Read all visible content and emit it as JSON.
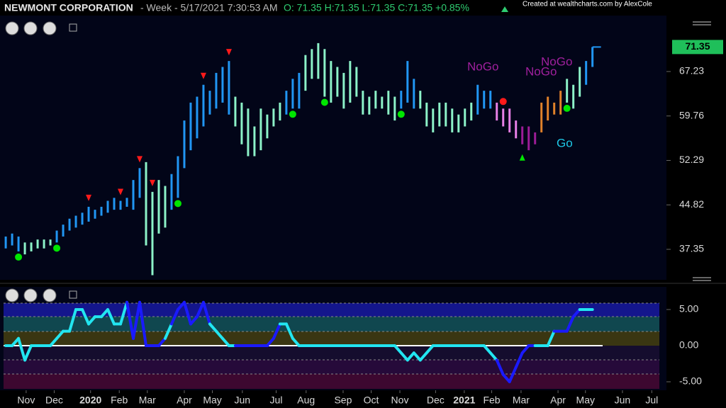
{
  "header": {
    "symbol": "NEWMONT CORPORATION",
    "info": "- Week - 5/17/2021 7:30:53 AM",
    "ohlc": "O: 71.35 H:71.35 L:71.35 C:71.35 +0.85%",
    "credit": "Created at wealthcharts.com by AlexCole"
  },
  "chart_data": {
    "type": "ohlc",
    "x": [
      0,
      1,
      2,
      3,
      4,
      5,
      6,
      7,
      8,
      9,
      10,
      11,
      12,
      13,
      14,
      15,
      16,
      17,
      18,
      19,
      20,
      21,
      22,
      23,
      24,
      25,
      26,
      27,
      28,
      29,
      30,
      31,
      32,
      33,
      34,
      35,
      36,
      37,
      38,
      39,
      40,
      41,
      42,
      43,
      44,
      45,
      46,
      47,
      48,
      49,
      50,
      51,
      52,
      53,
      54,
      55,
      56,
      57,
      58,
      59,
      60,
      61,
      62,
      63,
      64,
      65,
      66,
      67,
      68,
      69,
      70,
      71,
      72,
      73,
      74,
      75,
      76,
      77,
      78,
      79,
      80,
      81,
      82,
      83,
      84,
      85,
      86,
      87,
      88,
      89,
      90,
      91,
      92
    ],
    "high": [
      39.5,
      40,
      39.5,
      38.5,
      38.5,
      39,
      39,
      39,
      40.5,
      41.5,
      42.5,
      43,
      43.5,
      44.5,
      44,
      44.5,
      45.5,
      46,
      45.5,
      46,
      49,
      51,
      52,
      47,
      49,
      48,
      50,
      53,
      59,
      62,
      63,
      65,
      64,
      67,
      68,
      69,
      63,
      62,
      61,
      58,
      61,
      60,
      61,
      62,
      64,
      66,
      67,
      70,
      71,
      72,
      71,
      69,
      68,
      67,
      69,
      68,
      64,
      63,
      64,
      63,
      64,
      63,
      64,
      69,
      66,
      64,
      62,
      61,
      62,
      62,
      61,
      60,
      61,
      62,
      65,
      64,
      64,
      62,
      61,
      61,
      59,
      58,
      58,
      57,
      62,
      63,
      62,
      64,
      66,
      65,
      68,
      69,
      71.35
    ],
    "low": [
      37.5,
      38,
      37,
      36.5,
      37,
      37.5,
      37.5,
      38,
      38.5,
      39.5,
      40.5,
      41,
      41.5,
      42,
      42.5,
      43,
      43.5,
      44,
      44,
      44.5,
      44,
      46,
      38,
      33,
      40,
      41,
      44,
      46,
      51,
      54,
      56,
      58,
      60,
      61,
      62,
      60,
      58,
      55,
      53,
      53,
      54,
      56,
      58,
      59,
      60,
      61,
      61,
      64,
      66,
      66,
      63,
      62,
      63,
      61,
      62,
      63,
      60,
      60,
      61,
      61,
      60,
      59,
      61,
      62,
      61,
      61,
      58,
      57,
      58,
      58,
      57,
      57,
      58,
      59,
      60,
      61,
      61,
      59,
      58,
      57,
      56,
      55,
      54,
      55,
      57,
      59,
      60,
      60,
      62,
      61,
      63,
      65,
      68
    ],
    "colors": [
      "#2196f3",
      "#2196f3",
      "#2196f3",
      "#8cf2c8",
      "#8cf2c8",
      "#8cf2c8",
      "#8cf2c8",
      "#8cf2c8",
      "#2196f3",
      "#2196f3",
      "#2196f3",
      "#2196f3",
      "#2196f3",
      "#2196f3",
      "#2196f3",
      "#2196f3",
      "#2196f3",
      "#2196f3",
      "#2196f3",
      "#2196f3",
      "#2196f3",
      "#2196f3",
      "#8cf2c8",
      "#8cf2c8",
      "#8cf2c8",
      "#8cf2c8",
      "#2196f3",
      "#2196f3",
      "#2196f3",
      "#2196f3",
      "#2196f3",
      "#2196f3",
      "#2196f3",
      "#2196f3",
      "#2196f3",
      "#2196f3",
      "#8cf2c8",
      "#8cf2c8",
      "#8cf2c8",
      "#8cf2c8",
      "#8cf2c8",
      "#8cf2c8",
      "#8cf2c8",
      "#8cf2c8",
      "#2196f3",
      "#2196f3",
      "#2196f3",
      "#8cf2c8",
      "#8cf2c8",
      "#8cf2c8",
      "#8cf2c8",
      "#8cf2c8",
      "#8cf2c8",
      "#8cf2c8",
      "#8cf2c8",
      "#8cf2c8",
      "#8cf2c8",
      "#8cf2c8",
      "#8cf2c8",
      "#8cf2c8",
      "#8cf2c8",
      "#8cf2c8",
      "#2196f3",
      "#2196f3",
      "#2196f3",
      "#8cf2c8",
      "#8cf2c8",
      "#8cf2c8",
      "#8cf2c8",
      "#8cf2c8",
      "#8cf2c8",
      "#8cf2c8",
      "#8cf2c8",
      "#8cf2c8",
      "#2196f3",
      "#2196f3",
      "#2196f3",
      "#e77fe6",
      "#e77fe6",
      "#e77fe6",
      "#e77fe6",
      "#9c1c96",
      "#9c1c96",
      "#9c1c96",
      "#e0812a",
      "#e0812a",
      "#e0812a",
      "#e0812a",
      "#8cf2c8",
      "#8cf2c8",
      "#8cf2c8",
      "#2196f3",
      "#2196f3"
    ],
    "xlim": [
      -0.9,
      103.6
    ],
    "xticks": [
      {
        "value": 3.2,
        "label": "Nov"
      },
      {
        "value": 7.6,
        "label": "Dec"
      },
      {
        "value": 13.3,
        "label": "2020"
      },
      {
        "value": 17.8,
        "label": "Feb"
      },
      {
        "value": 22.2,
        "label": "Mar"
      },
      {
        "value": 28,
        "label": "Apr"
      },
      {
        "value": 32.4,
        "label": "May"
      },
      {
        "value": 37.1,
        "label": "Jun"
      },
      {
        "value": 42.4,
        "label": "Jul"
      },
      {
        "value": 47.1,
        "label": "Aug"
      },
      {
        "value": 52.9,
        "label": "Sep"
      },
      {
        "value": 57.3,
        "label": "Oct"
      },
      {
        "value": 61.8,
        "label": "Nov"
      },
      {
        "value": 67.4,
        "label": "Dec"
      },
      {
        "value": 71.9,
        "label": "2021"
      },
      {
        "value": 76.2,
        "label": "Feb"
      },
      {
        "value": 80.8,
        "label": "Mar"
      },
      {
        "value": 86.6,
        "label": "Apr"
      },
      {
        "value": 90.9,
        "label": "May"
      },
      {
        "value": 96.7,
        "label": "Jun"
      },
      {
        "value": 101.3,
        "label": "Jul"
      }
    ],
    "ylim": [
      32.23,
      79.25
    ],
    "yticks": [
      37.35,
      44.82,
      52.29,
      59.76,
      67.23
    ],
    "sell_signals": [
      13,
      18,
      21,
      23,
      31,
      35
    ],
    "go_signals": [
      2,
      8,
      27,
      45,
      50,
      62,
      88
    ],
    "nogo_signals": [
      78
    ],
    "buy_signals": [
      81
    ],
    "signal_colors": {
      "sell": "#ff1a1a",
      "go": "#00e600",
      "nogo": "#ff1a1a",
      "buy": "#00e600"
    },
    "annotations": [
      "NoGo",
      "NoGo",
      "NoGo",
      "Go"
    ],
    "oscillator": {
      "type": "line",
      "values": [
        0,
        0,
        1,
        -2,
        0,
        0,
        0,
        0,
        1,
        2,
        2,
        5,
        5,
        3,
        4,
        4,
        5,
        3,
        3,
        6,
        1,
        6,
        0,
        0,
        0,
        1,
        3,
        5,
        6,
        3,
        4,
        6,
        3,
        2,
        1,
        0,
        0,
        0,
        0,
        0,
        0,
        0,
        1,
        3,
        3,
        1,
        0,
        0,
        0,
        0,
        0,
        0,
        0,
        0,
        0,
        0,
        0,
        0,
        0,
        0,
        0,
        0,
        -1,
        -2,
        -1,
        -2,
        -1,
        0,
        0,
        0,
        0,
        0,
        0,
        0,
        0,
        0,
        -1,
        -2,
        -4,
        -5,
        -3,
        -1,
        0,
        0,
        0,
        0,
        2,
        2,
        2,
        4,
        5,
        5,
        5
      ],
      "colors": [
        "#22e5f0",
        "#22e5f0",
        "#22e5f0",
        "#22e5f0",
        "#22e5f0",
        "#22e5f0",
        "#22e5f0",
        "#22e5f0",
        "#22e5f0",
        "#22e5f0",
        "#22e5f0",
        "#22e5f0",
        "#22e5f0",
        "#22e5f0",
        "#22e5f0",
        "#22e5f0",
        "#22e5f0",
        "#22e5f0",
        "#22e5f0",
        "#1a1aff",
        "#1a1aff",
        "#1a1aff",
        "#1a1aff",
        "#1a1aff",
        "#1a1aff",
        "#22e5f0",
        "#1a1aff",
        "#1a1aff",
        "#1a1aff",
        "#1a1aff",
        "#1a1aff",
        "#1a1aff",
        "#22e5f0",
        "#22e5f0",
        "#22e5f0",
        "#22e5f0",
        "#1a1aff",
        "#1a1aff",
        "#1a1aff",
        "#1a1aff",
        "#1a1aff",
        "#1a1aff",
        "#1a1aff",
        "#22e5f0",
        "#22e5f0",
        "#22e5f0",
        "#22e5f0",
        "#22e5f0",
        "#22e5f0",
        "#22e5f0",
        "#22e5f0",
        "#22e5f0",
        "#22e5f0",
        "#22e5f0",
        "#22e5f0",
        "#22e5f0",
        "#22e5f0",
        "#22e5f0",
        "#22e5f0",
        "#22e5f0",
        "#22e5f0",
        "#22e5f0",
        "#22e5f0",
        "#22e5f0",
        "#22e5f0",
        "#22e5f0",
        "#22e5f0",
        "#22e5f0",
        "#22e5f0",
        "#22e5f0",
        "#22e5f0",
        "#22e5f0",
        "#22e5f0",
        "#22e5f0",
        "#22e5f0",
        "#22e5f0",
        "#22e5f0",
        "#1a1aff",
        "#1a1aff",
        "#1a1aff",
        "#1a1aff",
        "#1a1aff",
        "#1a1aff",
        "#22e5f0",
        "#22e5f0",
        "#22e5f0",
        "#1a1aff",
        "#1a1aff",
        "#1a1aff",
        "#1a1aff",
        "#22e5f0",
        "#22e5f0",
        "#22e5f0"
      ],
      "ylim": [
        -5.98,
        5.88
      ],
      "yticks": [
        {
          "value": 5,
          "label": "5.00"
        },
        {
          "value": 0,
          "label": "0.00"
        },
        {
          "value": -5,
          "label": "-5.00"
        }
      ]
    }
  }
}
